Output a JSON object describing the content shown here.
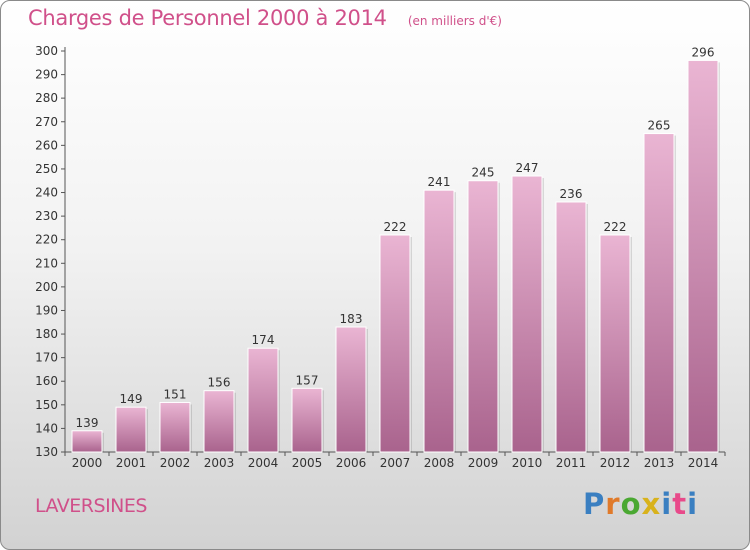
{
  "header": {
    "title": "Charges de Personnel 2000 à 2014",
    "unit": "(en milliers d'€)"
  },
  "footer": {
    "town": "LAVERSINES",
    "brand": "Proxiti"
  },
  "colors": {
    "accent": "#d0508a",
    "bar_light": "#eab5d3",
    "bar_dark": "#a9638d"
  },
  "chart_data": {
    "type": "bar",
    "title": "Charges de Personnel 2000 à 2014",
    "subtitle": "(en milliers d'€)",
    "xlabel": "",
    "ylabel": "",
    "categories": [
      "2000",
      "2001",
      "2002",
      "2003",
      "2004",
      "2005",
      "2006",
      "2007",
      "2008",
      "2009",
      "2010",
      "2011",
      "2012",
      "2013",
      "2014"
    ],
    "values": [
      139,
      149,
      151,
      156,
      174,
      157,
      183,
      222,
      241,
      245,
      247,
      236,
      222,
      265,
      296
    ],
    "ylim": [
      130,
      300
    ],
    "ytick_step": 10,
    "grid": false,
    "legend": "none",
    "data_labels": true
  }
}
